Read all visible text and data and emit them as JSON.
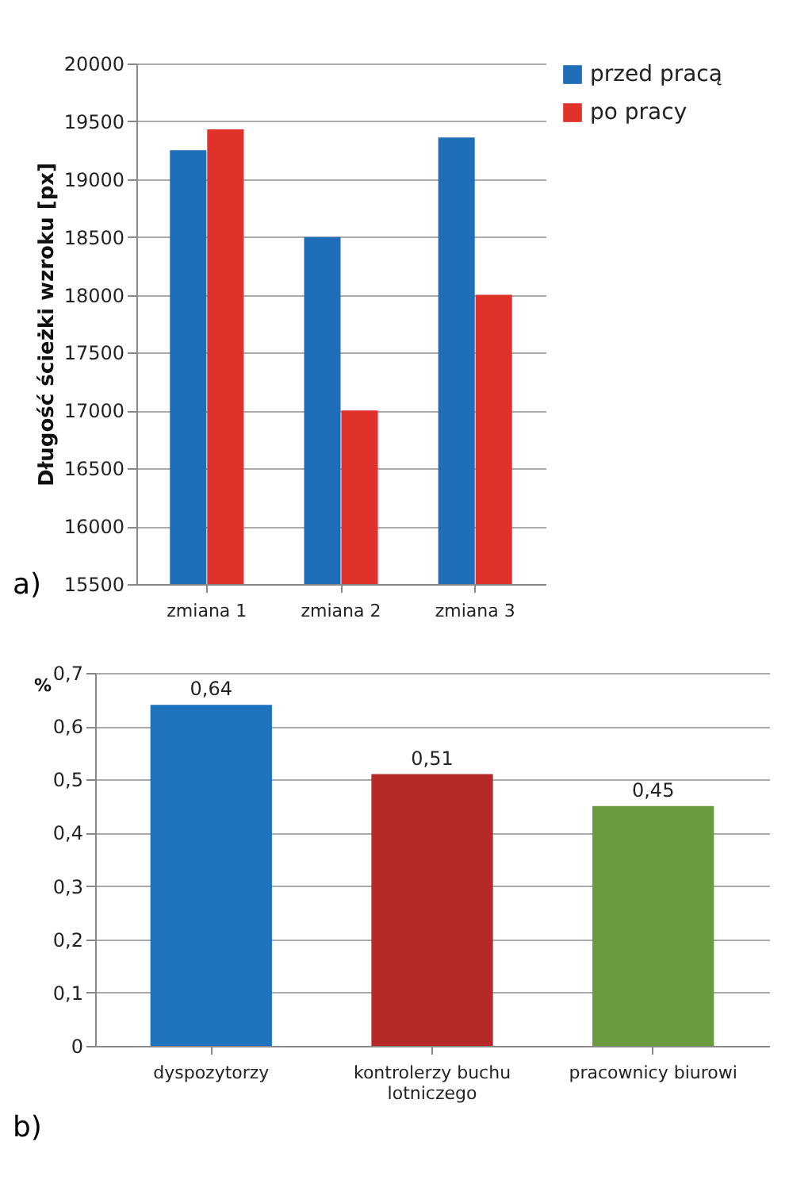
{
  "chart_data": [
    {
      "type": "bar",
      "categories": [
        "zmiana 1",
        "zmiana 2",
        "zmiana 3"
      ],
      "ylabel": "Długość ścieżki wzroku [px]",
      "series": [
        {
          "name": "przed pracą",
          "color": "#1f6fb8",
          "values": [
            19250,
            18500,
            19360
          ]
        },
        {
          "name": "po pracy",
          "color": "#e0322a",
          "values": [
            19430,
            17000,
            18000
          ]
        }
      ],
      "ylim": [
        15500,
        20000
      ],
      "yticks": [
        15500,
        16000,
        16500,
        17000,
        17500,
        18000,
        18500,
        19000,
        19500,
        20000
      ],
      "grid": "y",
      "legend": "right",
      "annotations": [
        "a)"
      ]
    },
    {
      "type": "bar",
      "categories": [
        "dyspozytorzy",
        "kontrolerzy buchu lotniczego",
        "pracownicy biurowi"
      ],
      "ylabel": "%",
      "values": [
        0.64,
        0.51,
        0.45
      ],
      "colors": [
        "#1f72bd",
        "#b52a26",
        "#6a9a3c"
      ],
      "value_labels": [
        "0,64",
        "0,51",
        "0,45"
      ],
      "ylim": [
        0,
        0.7
      ],
      "yticks": [
        {
          "value": 0,
          "label": "0"
        },
        {
          "value": 0.1,
          "label": "0,1"
        },
        {
          "value": 0.2,
          "label": "0,2"
        },
        {
          "value": 0.3,
          "label": "0,3"
        },
        {
          "value": 0.4,
          "label": "0,4"
        },
        {
          "value": 0.5,
          "label": "0,5"
        },
        {
          "value": 0.6,
          "label": "0,6"
        },
        {
          "value": 0.7,
          "label": "0,7"
        }
      ],
      "grid": "y",
      "annotations": [
        "b)"
      ]
    }
  ]
}
